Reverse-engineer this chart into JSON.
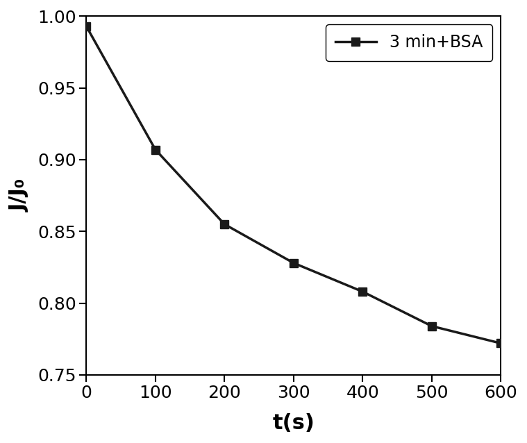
{
  "x": [
    0,
    100,
    200,
    300,
    400,
    500,
    600
  ],
  "y": [
    0.993,
    0.907,
    0.855,
    0.828,
    0.808,
    0.784,
    0.772
  ],
  "line_color": "#1a1a1a",
  "marker": "s",
  "marker_color": "#1a1a1a",
  "marker_size": 9,
  "linewidth": 2.5,
  "xlabel": "t(s)",
  "ylabel": "J/J₀",
  "xlim": [
    0,
    600
  ],
  "ylim": [
    0.75,
    1.0
  ],
  "xticks": [
    0,
    100,
    200,
    300,
    400,
    500,
    600
  ],
  "yticks": [
    0.75,
    0.8,
    0.85,
    0.9,
    0.95,
    1.0
  ],
  "legend_label": "3 min+BSA",
  "xlabel_fontsize": 22,
  "ylabel_fontsize": 22,
  "tick_fontsize": 18,
  "legend_fontsize": 17,
  "background_color": "#ffffff"
}
